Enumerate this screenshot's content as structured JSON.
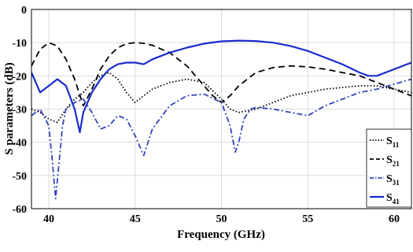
{
  "chart_data": {
    "type": "line",
    "title": "",
    "xlabel": "Frequency (GHz)",
    "ylabel": "S parameters (dB)",
    "xlim": [
      39,
      61
    ],
    "ylim": [
      -60,
      0
    ],
    "xticks": [
      40,
      45,
      50,
      55,
      60
    ],
    "yticks": [
      0,
      -10,
      -20,
      -30,
      -40,
      -50,
      -60
    ],
    "xtick_labels": [
      "40",
      "45",
      "50",
      "55",
      "60"
    ],
    "ytick_labels": [
      "0",
      "-10",
      "-20",
      "-30",
      "-40",
      "-50",
      "-60"
    ],
    "grid": true,
    "legend_position": "right",
    "series": [
      {
        "name": "S11",
        "label_main": "S",
        "label_sub": "11",
        "color": "#000000",
        "style": "dotted",
        "x": [
          39,
          39.5,
          40,
          40.5,
          41,
          41.5,
          42,
          42.5,
          43,
          43.5,
          44,
          44.5,
          45,
          45.5,
          46,
          47,
          48,
          49,
          50,
          50.5,
          51,
          52,
          53,
          54,
          55,
          56,
          57,
          58,
          59,
          60,
          61
        ],
        "y": [
          -30,
          -31,
          -33,
          -34,
          -30,
          -27,
          -25,
          -22,
          -20,
          -19,
          -21,
          -25,
          -28,
          -26,
          -24,
          -22,
          -21,
          -22,
          -27,
          -30,
          -31,
          -30,
          -28,
          -26,
          -25,
          -24,
          -23.5,
          -23,
          -23,
          -24,
          -25
        ]
      },
      {
        "name": "S21",
        "label_main": "S",
        "label_sub": "21",
        "color": "#000000",
        "style": "dashed",
        "x": [
          39,
          39.5,
          40,
          40.5,
          41,
          41.5,
          42,
          42.5,
          43,
          43.5,
          44,
          44.5,
          45,
          45.5,
          46,
          47,
          48,
          49,
          49.5,
          50,
          50.5,
          51,
          51.5,
          52,
          53,
          54,
          55,
          56,
          57,
          58,
          59,
          60,
          61
        ],
        "y": [
          -17,
          -12,
          -10,
          -11,
          -15,
          -21,
          -29,
          -24,
          -18,
          -14,
          -11.5,
          -10.3,
          -10,
          -10.2,
          -10.8,
          -13,
          -17,
          -23,
          -26,
          -28,
          -26,
          -23,
          -21,
          -19,
          -17.5,
          -17,
          -17.3,
          -18,
          -19,
          -20,
          -22,
          -24,
          -26
        ]
      },
      {
        "name": "S31",
        "label_main": "S",
        "label_sub": "31",
        "color": "#3344bb",
        "style": "dashdot",
        "x": [
          39,
          39.5,
          40,
          40.2,
          40.4,
          40.6,
          40.8,
          41,
          41.5,
          42,
          42.5,
          43,
          43.5,
          44,
          44.5,
          45,
          45.5,
          46,
          47,
          48,
          49,
          50,
          50.5,
          50.8,
          51,
          51.3,
          51.7,
          52,
          53,
          54,
          55,
          56,
          57,
          58,
          59,
          60,
          61
        ],
        "y": [
          -32,
          -30,
          -35,
          -45,
          -57,
          -46,
          -35,
          -30,
          -28,
          -27,
          -31,
          -36,
          -35,
          -32,
          -33,
          -38,
          -44,
          -36,
          -29,
          -26,
          -25.5,
          -28,
          -35,
          -43,
          -40,
          -33,
          -30,
          -29.5,
          -30,
          -31,
          -32,
          -29,
          -27,
          -25,
          -24,
          -22.5,
          -21
        ]
      },
      {
        "name": "S41",
        "label_main": "S",
        "label_sub": "41",
        "color": "#1a2ccc",
        "style": "solid",
        "x": [
          39,
          39.5,
          40,
          40.5,
          41,
          41.5,
          41.8,
          42,
          42.5,
          43,
          43.5,
          44,
          44.5,
          45,
          45.5,
          46,
          47,
          48,
          49,
          50,
          51,
          52,
          53,
          54,
          55,
          56,
          57,
          58,
          58.5,
          59,
          60,
          61
        ],
        "y": [
          -19,
          -25,
          -23,
          -21,
          -23,
          -30,
          -37,
          -31,
          -25,
          -21,
          -18,
          -16.5,
          -16,
          -16,
          -16.5,
          -15,
          -13,
          -11.5,
          -10.3,
          -9.6,
          -9.4,
          -9.5,
          -10,
          -11,
          -12.5,
          -14.5,
          -16.5,
          -19,
          -20,
          -20,
          -18,
          -16
        ]
      }
    ]
  }
}
